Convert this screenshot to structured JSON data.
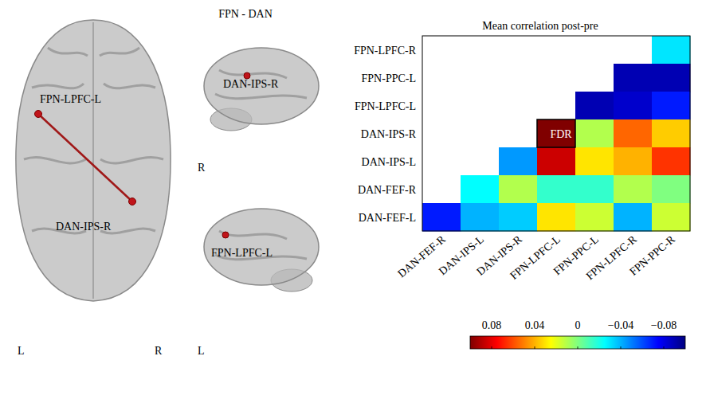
{
  "chart_data": {
    "type": "heatmap",
    "title": "Mean correlation post-pre",
    "rows": [
      "FPN-LPFC-R",
      "FPN-PPC-L",
      "FPN-LPFC-L",
      "DAN-IPS-R",
      "DAN-IPS-L",
      "DAN-FEF-R",
      "DAN-FEF-L"
    ],
    "columns": [
      "DAN-FEF-R",
      "DAN-IPS-L",
      "DAN-IPS-R",
      "FPN-LPFC-L",
      "FPN-PPC-L",
      "FPN-LPFC-R",
      "FPN-PPC-R"
    ],
    "cells": [
      [
        null,
        null,
        null,
        null,
        null,
        null,
        -0.03
      ],
      [
        null,
        null,
        null,
        null,
        null,
        -0.09,
        -0.09
      ],
      [
        null,
        null,
        null,
        null,
        -0.09,
        -0.085,
        -0.07
      ],
      [
        null,
        null,
        null,
        0.1,
        0.01,
        0.055,
        0.035
      ],
      [
        null,
        null,
        -0.045,
        0.085,
        0.03,
        0.04,
        0.065
      ],
      [
        null,
        -0.025,
        0.01,
        -0.015,
        -0.015,
        0.01,
        0
      ],
      [
        -0.07,
        -0.04,
        -0.035,
        0.03,
        0.015,
        -0.04,
        0.015
      ]
    ],
    "significant": [
      {
        "row": "DAN-IPS-R",
        "column": "FPN-LPFC-L",
        "label": "FDR"
      }
    ],
    "colorbar": {
      "range": [
        0.1,
        -0.1
      ],
      "ticks": [
        0.08,
        0.04,
        0,
        {
          "value": -0.04,
          "label": "−0.04"
        },
        {
          "value": -0.08,
          "label": "−0.08"
        }
      ]
    }
  },
  "brain_figure": {
    "title": "FPN - DAN",
    "edge": {
      "from": "FPN-LPFC-L",
      "to": "DAN-IPS-R"
    },
    "axial": {
      "nodes": [
        "FPN-LPFC-L",
        "DAN-IPS-R"
      ],
      "left": "L",
      "right": "R"
    },
    "sagittal_right": {
      "node": "DAN-IPS-R",
      "side": "R"
    },
    "sagittal_left": {
      "node": "FPN-LPFC-L",
      "side": "L"
    }
  }
}
